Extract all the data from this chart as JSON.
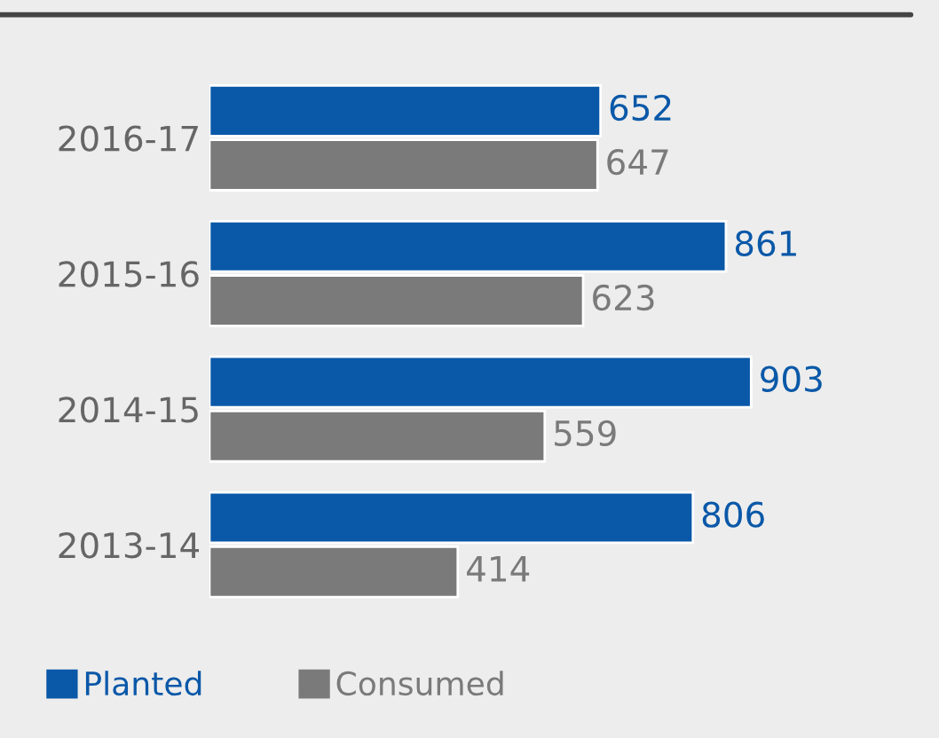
{
  "chart_data": {
    "type": "bar",
    "orientation": "horizontal",
    "categories": [
      "2016-17",
      "2015-16",
      "2014-15",
      "2013-14"
    ],
    "series": [
      {
        "name": "Planted",
        "color": "#0a58a8",
        "values": [
          652,
          861,
          903,
          806
        ]
      },
      {
        "name": "Consumed",
        "color": "#7a7a7a",
        "values": [
          647,
          623,
          559,
          414
        ]
      }
    ],
    "data_labels": true,
    "legend": "bottom left",
    "grid": false,
    "tick_labels": "y"
  }
}
